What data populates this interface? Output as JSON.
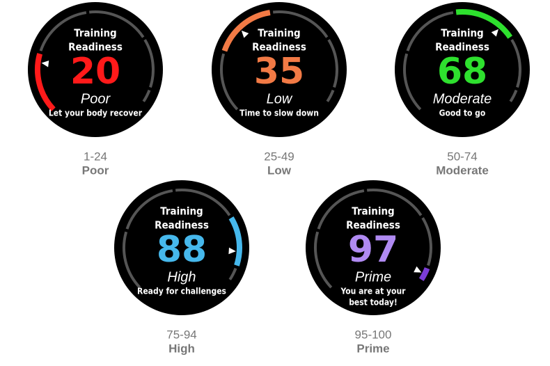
{
  "faces": [
    {
      "title_lines": [
        "Training",
        "Readiness"
      ],
      "score": 20,
      "level": "Poor",
      "message_lines": [
        "Let your body recover"
      ],
      "range": "1-24",
      "range_label": "Poor",
      "color": "#ff1a1a"
    },
    {
      "title_lines": [
        "Training",
        "Readiness"
      ],
      "score": 35,
      "level": "Low",
      "message_lines": [
        "Time to slow down"
      ],
      "range": "25-49",
      "range_label": "Low",
      "color": "#f27a45"
    },
    {
      "title_lines": [
        "Training",
        "Readiness"
      ],
      "score": 68,
      "level": "Moderate",
      "message_lines": [
        "Good to go"
      ],
      "range": "50-74",
      "range_label": "Moderate",
      "color": "#2ee02e"
    },
    {
      "title_lines": [
        "Training",
        "Readiness"
      ],
      "score": 88,
      "level": "High",
      "message_lines": [
        "Ready for challenges"
      ],
      "range": "75-94",
      "range_label": "High",
      "color": "#46b8ec"
    },
    {
      "title_lines": [
        "Training",
        "Readiness"
      ],
      "score": 97,
      "level": "Prime",
      "message_lines": [
        "You are at your",
        "best today!"
      ],
      "range": "95-100",
      "range_label": "Prime",
      "color": "#b08af2"
    }
  ]
}
